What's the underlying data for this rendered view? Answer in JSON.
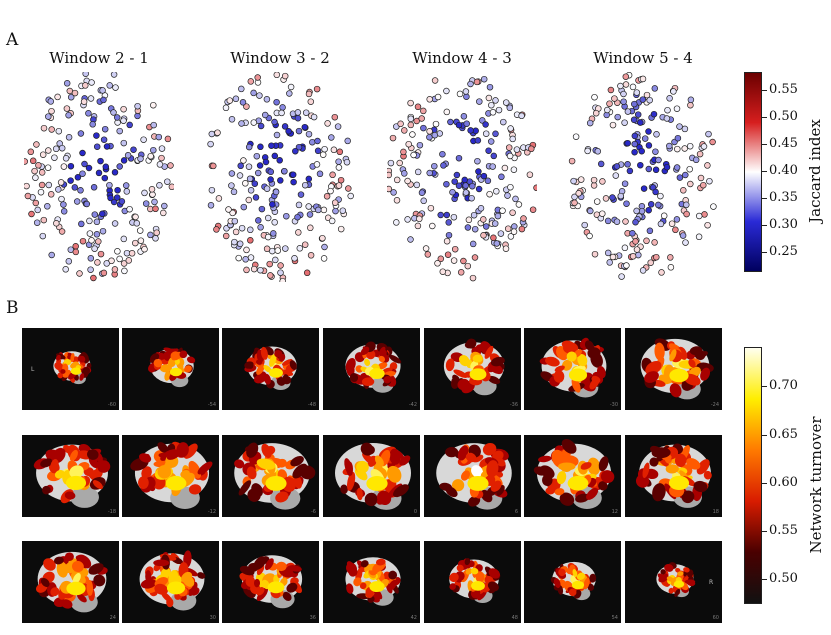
{
  "panel_a": {
    "letter": "A",
    "windows": [
      "Window 2 - 1",
      "Window 3 - 2",
      "Window 4 - 3",
      "Window 5 - 4"
    ],
    "colorbar": {
      "label": "Jaccard index",
      "ticks": [
        "0.55",
        "0.50",
        "0.45",
        "0.40",
        "0.35",
        "0.30",
        "0.25"
      ],
      "colors": [
        "#6b0000",
        "#d61e1e",
        "#ffffff",
        "#2a2ad6",
        "#00005e"
      ]
    }
  },
  "panel_b": {
    "letter": "B",
    "hemisphere_left": "L",
    "hemisphere_right": "R",
    "slices": [
      [
        "-60",
        "-54",
        "-48",
        "-42",
        "-36",
        "-30",
        "-24"
      ],
      [
        "-18",
        "-12",
        "-6",
        "0",
        "6",
        "12",
        "18"
      ],
      [
        "24",
        "30",
        "36",
        "42",
        "48",
        "54",
        "60"
      ]
    ],
    "colorbar": {
      "label": "Network turnover",
      "ticks": [
        "0.70",
        "0.65",
        "0.60",
        "0.55",
        "0.50"
      ],
      "colors": [
        "#fffff0",
        "#ffee00",
        "#ff7a00",
        "#d81c00",
        "#4a0000",
        "#111111"
      ]
    }
  }
}
